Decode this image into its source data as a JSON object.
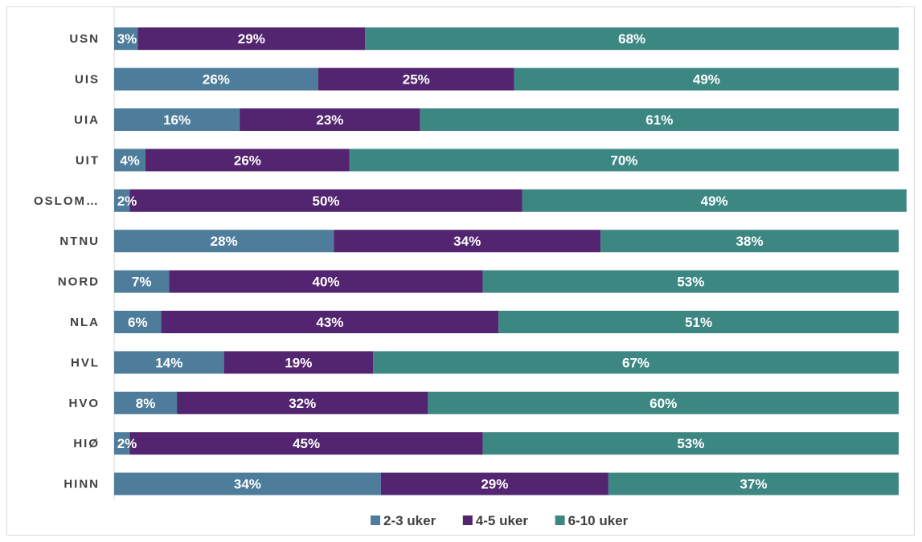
{
  "chart_data": {
    "type": "bar",
    "orientation": "horizontal",
    "stacked": "percent",
    "title": "",
    "xlabel": "",
    "ylabel": "",
    "xlim": [
      0,
      100
    ],
    "grid": true,
    "legend_position": "bottom",
    "categories": [
      "USN",
      "UIS",
      "UIA",
      "UIT",
      "OSLOM…",
      "NTNU",
      "NORD",
      "NLA",
      "HVL",
      "HVO",
      "HIØ",
      "HINN"
    ],
    "series": [
      {
        "name": "2-3 uker",
        "color": "#4e7c9b",
        "values": [
          3,
          26,
          16,
          4,
          2,
          28,
          7,
          6,
          14,
          8,
          2,
          34
        ],
        "labels": [
          "3%",
          "26%",
          "16%",
          "4%",
          "2%",
          "28%",
          "7%",
          "6%",
          "14%",
          "8%",
          "2%",
          "34%"
        ]
      },
      {
        "name": "4-5 uker",
        "color": "#53246f",
        "values": [
          29,
          25,
          23,
          26,
          50,
          34,
          40,
          43,
          19,
          32,
          45,
          29
        ],
        "labels": [
          "29%",
          "25%",
          "23%",
          "26%",
          "50%",
          "34%",
          "40%",
          "43%",
          "19%",
          "32%",
          "45%",
          "29%"
        ]
      },
      {
        "name": "6-10 uker",
        "color": "#3d8783",
        "values": [
          68,
          49,
          61,
          70,
          49,
          38,
          53,
          51,
          67,
          60,
          53,
          37
        ],
        "labels": [
          "68%",
          "49%",
          "61%",
          "70%",
          "49%",
          "38%",
          "53%",
          "51%",
          "67%",
          "60%",
          "53%",
          "37%"
        ]
      }
    ]
  }
}
